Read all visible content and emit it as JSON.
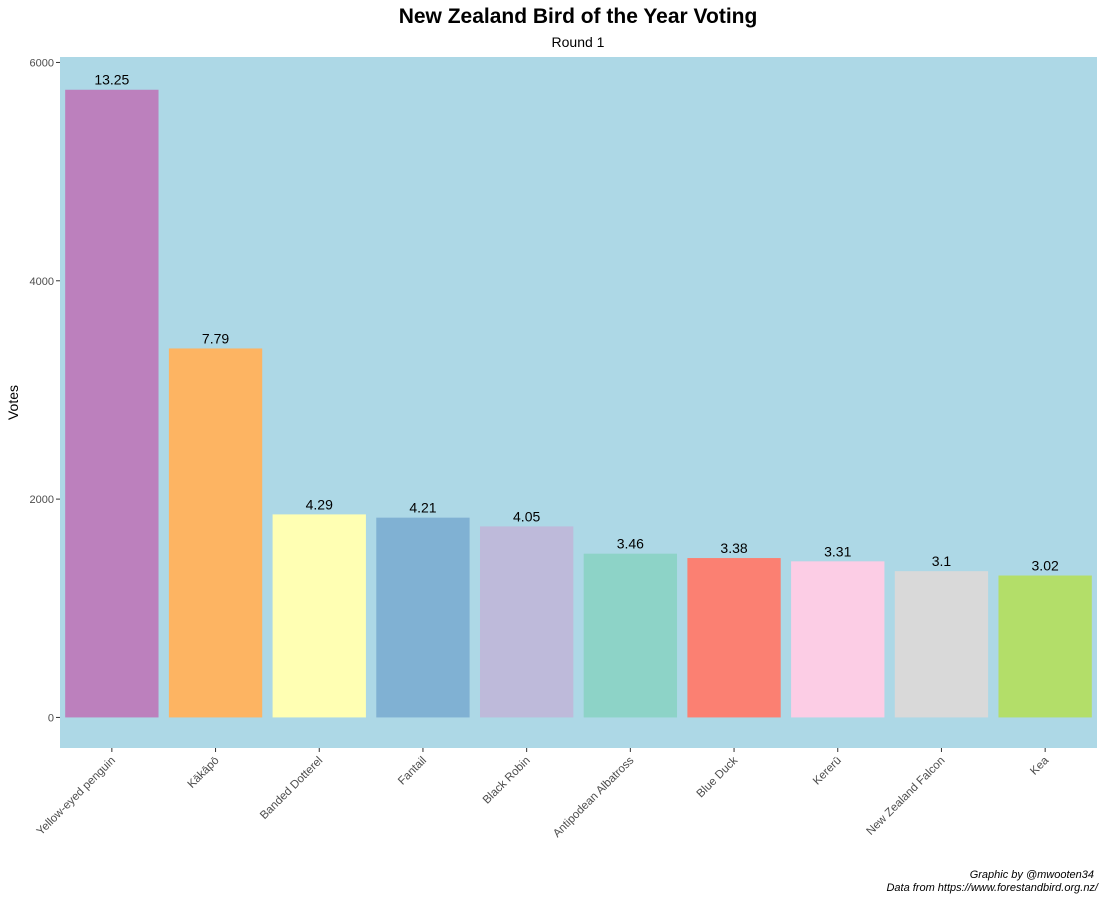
{
  "chart_data": {
    "type": "bar",
    "title": "New Zealand Bird of the Year Voting",
    "subtitle": "Round 1",
    "xlabel": "",
    "ylabel": "Votes",
    "ylim": [
      -280,
      6050
    ],
    "yticks": [
      0,
      2000,
      4000,
      6000
    ],
    "yticklabels": [
      "0",
      "2000",
      "4000",
      "6000"
    ],
    "grid": false,
    "background": "#add8e6",
    "categories": [
      "Yellow-eyed penguin",
      "Kākāpō",
      "Banded Dotterel",
      "Fantail",
      "Black Robin",
      "Antipodean Albatross",
      "Blue Duck",
      "Kererū",
      "New Zealand Falcon",
      "Kea"
    ],
    "values": [
      5750,
      3380,
      1860,
      1830,
      1750,
      1500,
      1460,
      1430,
      1340,
      1300
    ],
    "data_labels": [
      "13.25",
      "7.79",
      "4.29",
      "4.21",
      "4.05",
      "3.46",
      "3.38",
      "3.31",
      "3.1",
      "3.02"
    ],
    "colors": [
      "#bc80bd",
      "#fdb462",
      "#ffffb3",
      "#80b1d3",
      "#bebada",
      "#8dd3c7",
      "#fb8072",
      "#fccde5",
      "#d9d9d9",
      "#b3de69"
    ],
    "caption": [
      "Graphic by @mwooten34",
      "Data from https://www.forestandbird.org.nz/"
    ]
  }
}
